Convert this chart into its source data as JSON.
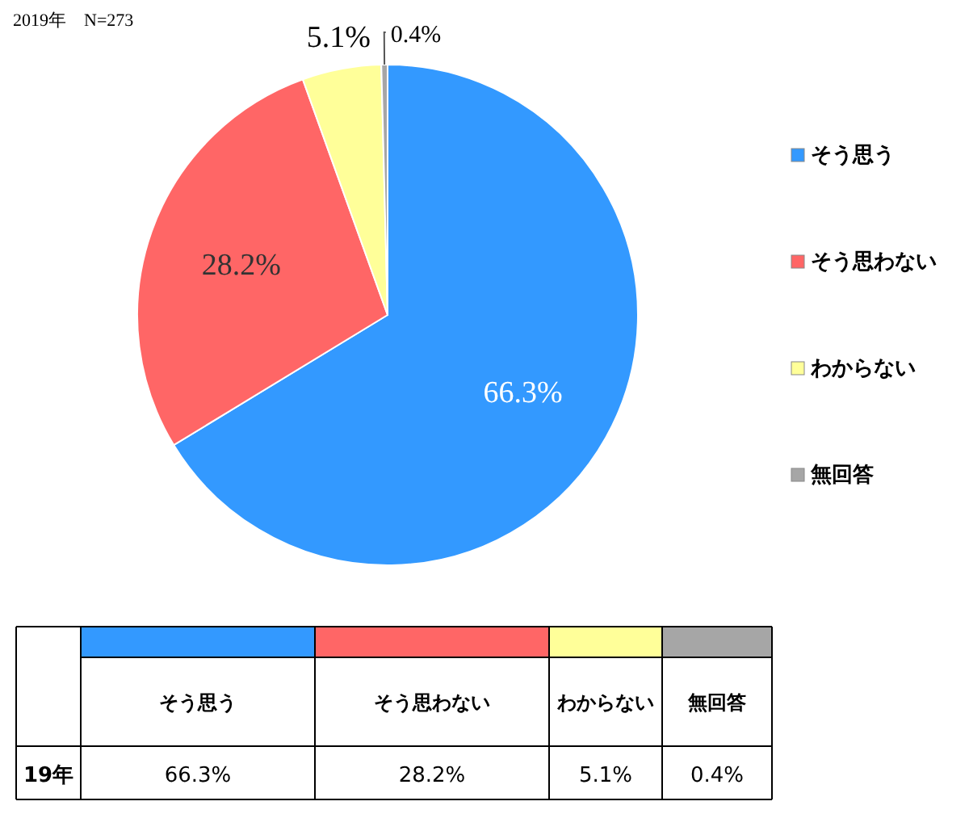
{
  "chart_data": {
    "type": "pie",
    "title": "2019年　N=273",
    "categories": [
      "そう思う",
      "そう思わない",
      "わからない",
      "無回答"
    ],
    "values": [
      66.3,
      28.2,
      5.1,
      0.4
    ],
    "colors": [
      "#3399ff",
      "#ff6666",
      "#ffff99",
      "#a6a6a6"
    ],
    "value_labels": [
      "66.3%",
      "28.2%",
      "5.1%",
      "0.4%"
    ],
    "legend": "right",
    "annotations": [
      "19年"
    ]
  }
}
